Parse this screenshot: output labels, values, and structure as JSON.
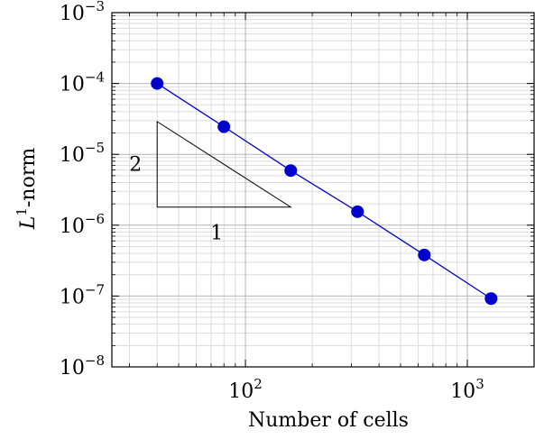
{
  "chart_data": {
    "type": "line",
    "title": "",
    "xlabel": "Number of cells",
    "ylabel": "-norm",
    "ylabel_symbol": "L",
    "ylabel_sup": "1",
    "x_scale": "log",
    "y_scale": "log",
    "xlim": [
      25,
      2000
    ],
    "ylim": [
      1e-08,
      0.001
    ],
    "x_ticks": [
      {
        "value": 100,
        "base": "10",
        "exp": "2"
      },
      {
        "value": 1000,
        "base": "10",
        "exp": "3"
      }
    ],
    "y_ticks": [
      {
        "value": 1e-08,
        "base": "10",
        "exp": "−8"
      },
      {
        "value": 1e-07,
        "base": "10",
        "exp": "−7"
      },
      {
        "value": 1e-06,
        "base": "10",
        "exp": "−6"
      },
      {
        "value": 1e-05,
        "base": "10",
        "exp": "−5"
      },
      {
        "value": 0.0001,
        "base": "10",
        "exp": "−4"
      },
      {
        "value": 0.001,
        "base": "10",
        "exp": "−3"
      }
    ],
    "grid": true,
    "series": [
      {
        "color": "#0000cc",
        "x": [
          40,
          80,
          160,
          320,
          640,
          1280
        ],
        "y": [
          0.0001,
          2.45e-05,
          5.9e-06,
          1.55e-06,
          3.8e-07,
          9.2e-08
        ]
      }
    ],
    "slope_triangle": {
      "corner": [
        40,
        1.8e-06
      ],
      "top_y": 2.9e-05,
      "right_x": 160,
      "vertical_label": "2",
      "horizontal_label": "1"
    }
  }
}
